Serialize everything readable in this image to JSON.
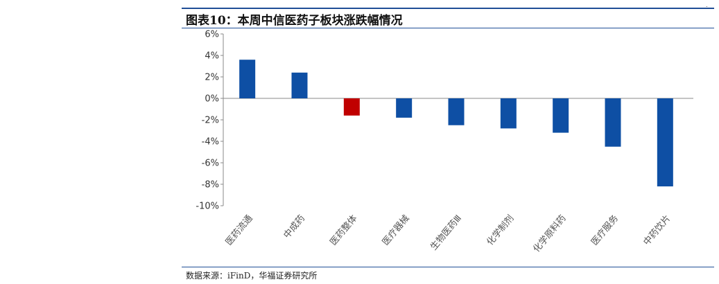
{
  "header": {
    "title": "图表10：本周中信医药子板块涨跌幅情况",
    "source": "数据来源：iFinD，华福证券研究所",
    "corner_mark": "."
  },
  "chart_data": {
    "type": "bar",
    "categories": [
      "医药流通",
      "中成药",
      "医药整体",
      "医疗器械",
      "生物医药Ⅲ",
      "化学制剂",
      "化学原料药",
      "医疗服务",
      "中药饮片"
    ],
    "values": [
      3.6,
      2.4,
      -1.6,
      -1.8,
      -2.5,
      -2.8,
      -3.2,
      -4.5,
      -8.2
    ],
    "ylim": [
      -10,
      6
    ],
    "yticks": [
      6,
      4,
      2,
      0,
      -2,
      -4,
      -6,
      -8,
      -10
    ],
    "ytick_labels": [
      "6%",
      "4%",
      "2%",
      "0%",
      "-2%",
      "-4%",
      "-6%",
      "-8%",
      "-10%"
    ],
    "highlight_category": "医药整体",
    "colors": {
      "default": "#0e4fa4",
      "highlight": "#c00000",
      "axis": "#888888"
    },
    "title": "",
    "xlabel": "",
    "ylabel": "",
    "grid": false
  }
}
